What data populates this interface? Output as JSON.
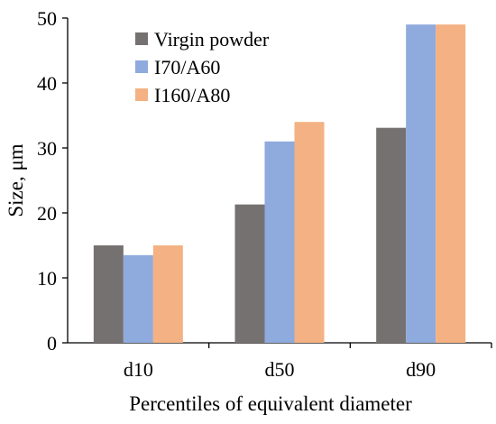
{
  "chart_data": {
    "type": "bar",
    "title": "",
    "xlabel": "Percentiles of equivalent diameter",
    "ylabel": "Size, μm",
    "categories": [
      "d10",
      "d50",
      "d90"
    ],
    "series": [
      {
        "name": "Virgin powder",
        "values": [
          15,
          21.3,
          33.1
        ],
        "color": "#767171"
      },
      {
        "name": "I70/A60",
        "values": [
          13.5,
          31,
          49
        ],
        "color": "#8FAADC"
      },
      {
        "name": "I160/A80",
        "values": [
          15,
          34,
          49
        ],
        "color": "#F4B183"
      }
    ],
    "ylim": [
      0,
      50
    ],
    "yticks": [
      "0",
      "10",
      "20",
      "30",
      "40",
      "50"
    ],
    "grid": false,
    "legend_position": "top-left"
  }
}
